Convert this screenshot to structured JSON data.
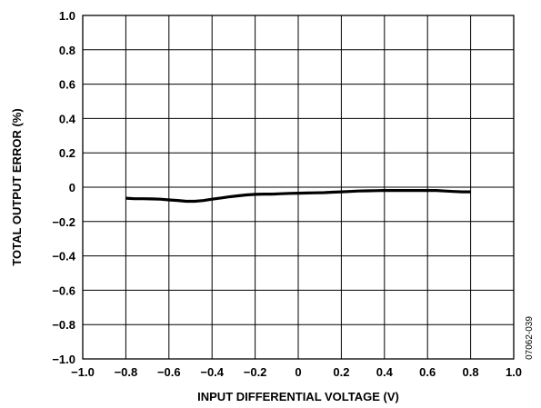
{
  "chart_data": {
    "type": "line",
    "xlabel": "INPUT DIFFERENTIAL VOLTAGE (V)",
    "ylabel": "TOTAL OUTPUT ERROR (%)",
    "xlim": [
      -1.0,
      1.0
    ],
    "ylim": [
      -1.0,
      1.0
    ],
    "x_ticks": [
      "−1.0",
      "−0.8",
      "−0.6",
      "−0.4",
      "−0.2",
      "0",
      "0.2",
      "0.4",
      "0.6",
      "0.8",
      "1.0"
    ],
    "y_ticks": [
      "1.0",
      "0.8",
      "0.6",
      "0.4",
      "0.2",
      "0",
      "−0.2",
      "−0.4",
      "−0.6",
      "−0.8",
      "−1.0"
    ],
    "grid": true,
    "series": [
      {
        "color": "#000000",
        "x": [
          -0.8,
          -0.76,
          -0.72,
          -0.68,
          -0.64,
          -0.6,
          -0.56,
          -0.52,
          -0.48,
          -0.44,
          -0.4,
          -0.36,
          -0.32,
          -0.28,
          -0.24,
          -0.2,
          -0.16,
          -0.12,
          -0.08,
          -0.04,
          0.0,
          0.04,
          0.08,
          0.12,
          0.16,
          0.2,
          0.24,
          0.28,
          0.32,
          0.36,
          0.4,
          0.44,
          0.48,
          0.52,
          0.56,
          0.6,
          0.64,
          0.68,
          0.72,
          0.76,
          0.8
        ],
        "y": [
          -0.064,
          -0.067,
          -0.067,
          -0.068,
          -0.07,
          -0.074,
          -0.077,
          -0.082,
          -0.082,
          -0.078,
          -0.07,
          -0.063,
          -0.056,
          -0.05,
          -0.045,
          -0.042,
          -0.04,
          -0.04,
          -0.038,
          -0.036,
          -0.035,
          -0.034,
          -0.033,
          -0.032,
          -0.029,
          -0.027,
          -0.025,
          -0.022,
          -0.021,
          -0.02,
          -0.019,
          -0.019,
          -0.019,
          -0.019,
          -0.019,
          -0.019,
          -0.019,
          -0.022,
          -0.025,
          -0.027,
          -0.027
        ]
      }
    ]
  },
  "figure_code": "07062-039"
}
